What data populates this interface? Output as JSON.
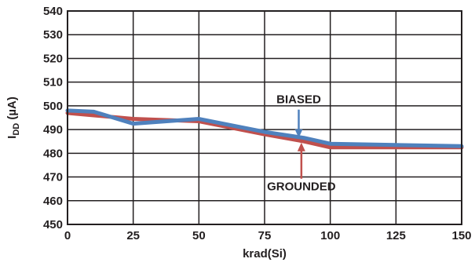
{
  "chart_data": {
    "type": "line",
    "xlabel": "krad(Si)",
    "ylabel_main": "I",
    "ylabel_sub": "DD",
    "ylabel_unit": " (µA)",
    "xlim": [
      0,
      150
    ],
    "ylim": [
      450,
      540
    ],
    "xticks": [
      0,
      25,
      50,
      75,
      100,
      125,
      150
    ],
    "yticks": [
      450,
      460,
      470,
      480,
      490,
      500,
      510,
      520,
      530,
      540
    ],
    "grid": true,
    "series": [
      {
        "name": "GROUNDED",
        "color": "#c0504d",
        "x": [
          0,
          10,
          25,
          50,
          75,
          90,
          100,
          125,
          150
        ],
        "y": [
          497,
          496,
          494.5,
          493.5,
          488,
          485,
          482.5,
          482.5,
          482.5
        ]
      },
      {
        "name": "BIASED",
        "color": "#4f81bd",
        "x": [
          0,
          10,
          25,
          50,
          75,
          90,
          100,
          125,
          150
        ],
        "y": [
          498,
          497.5,
          492.5,
          494.5,
          489,
          486.5,
          484,
          483.5,
          483
        ]
      }
    ],
    "annotations": [
      {
        "text": "BIASED",
        "arrow_to": [
          88,
          486.5
        ],
        "color": "#4f81bd",
        "position": "above"
      },
      {
        "text": "GROUNDED",
        "arrow_to": [
          89,
          484.5
        ],
        "color": "#c0504d",
        "position": "below"
      }
    ]
  }
}
